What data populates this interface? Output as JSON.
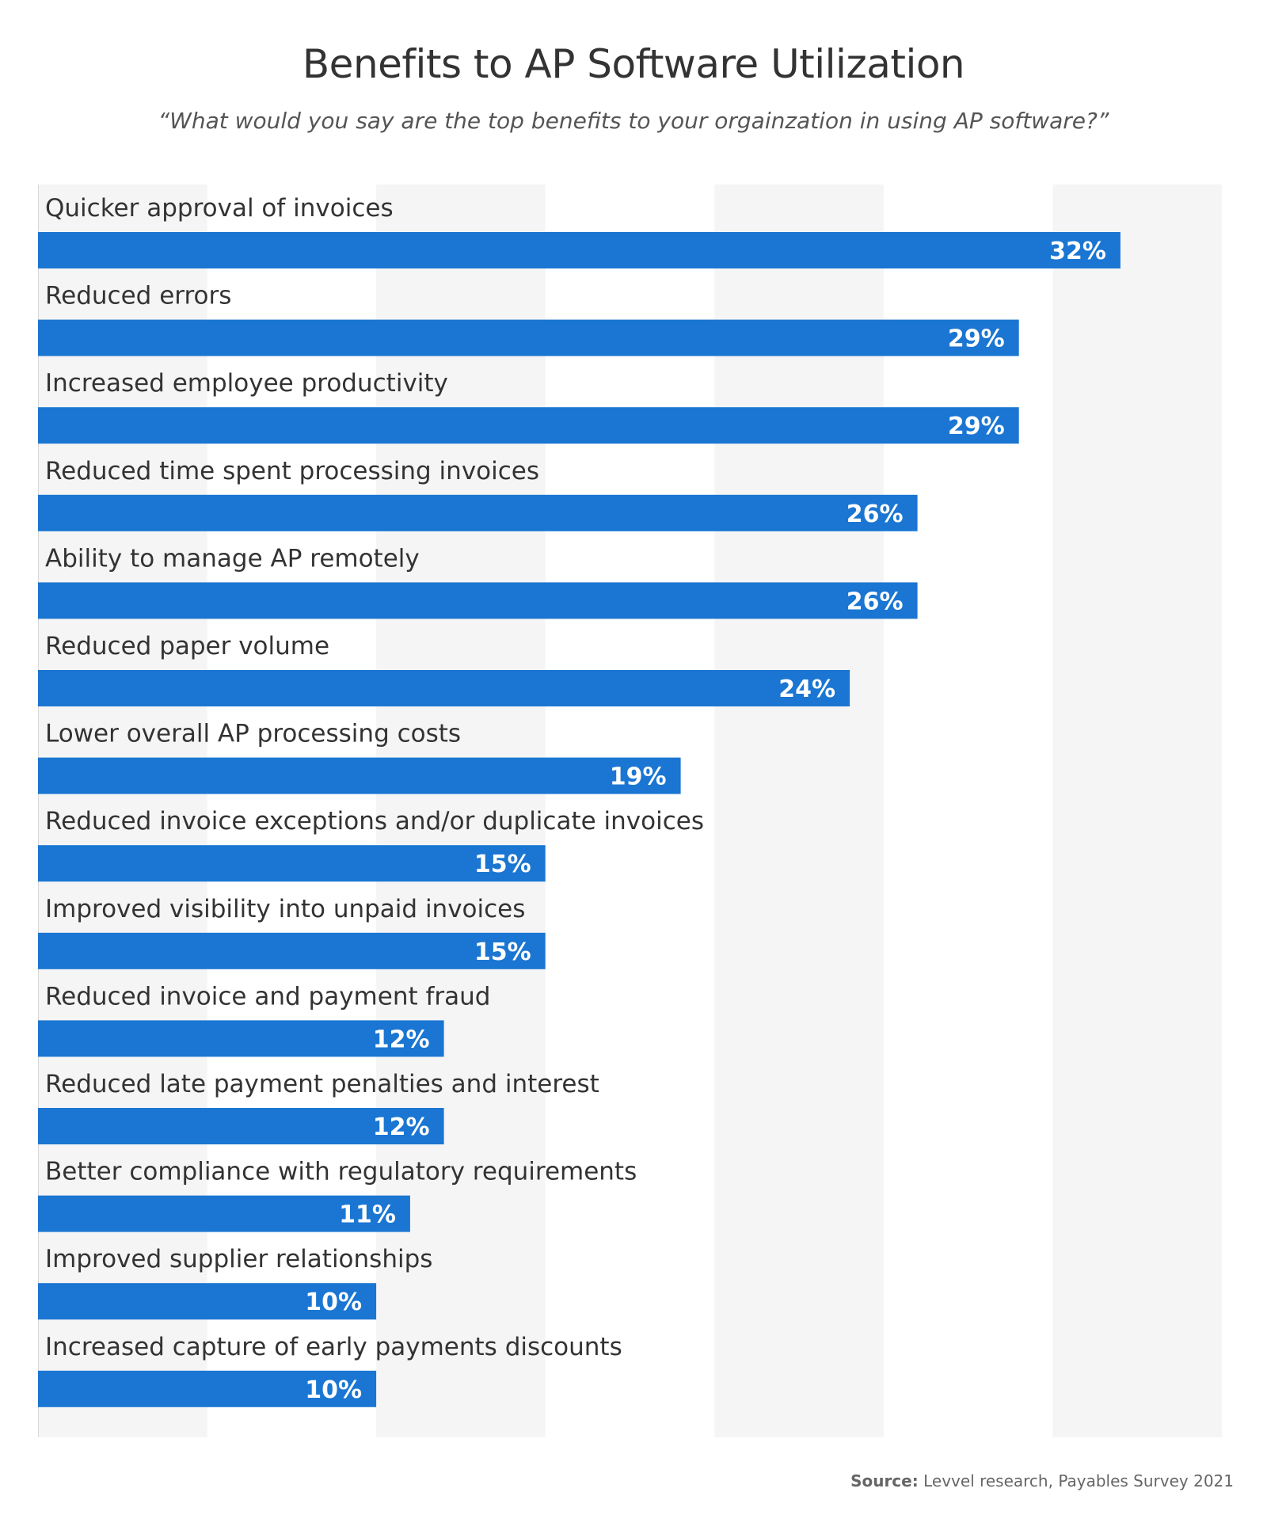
{
  "chart_data": {
    "type": "bar",
    "orientation": "horizontal",
    "title": "Benefits to AP Software Utilization",
    "subtitle": "“What would you say are the top benefits to your orgainzation in using AP software?”",
    "categories": [
      "Quicker approval of invoices",
      "Reduced errors",
      "Increased employee productivity",
      "Reduced time spent processing invoices",
      "Ability to manage AP remotely",
      "Reduced paper volume",
      "Lower overall AP processing costs",
      "Reduced invoice exceptions and/or duplicate invoices",
      "Improved visibility into unpaid invoices",
      "Reduced invoice and payment fraud",
      "Reduced late payment penalties and interest",
      "Better compliance with regulatory requirements",
      "Improved supplier relationships",
      "Increased capture of early payments discounts"
    ],
    "values": [
      32,
      29,
      29,
      26,
      26,
      24,
      19,
      15,
      15,
      12,
      12,
      11,
      10,
      10
    ],
    "value_labels": [
      "32%",
      "29%",
      "29%",
      "26%",
      "26%",
      "24%",
      "19%",
      "15%",
      "15%",
      "12%",
      "12%",
      "11%",
      "10%",
      "10%"
    ],
    "unit": "%",
    "xlim": [
      0,
      35
    ],
    "grid": "alternating vertical bands every 5%",
    "colors": {
      "bar": "#1a76d2",
      "band": "#f5f5f5",
      "label_text": "#333333",
      "value_text": "#ffffff"
    }
  },
  "source": {
    "label": "Source:",
    "text": " Levvel research, Payables Survey 2021"
  }
}
